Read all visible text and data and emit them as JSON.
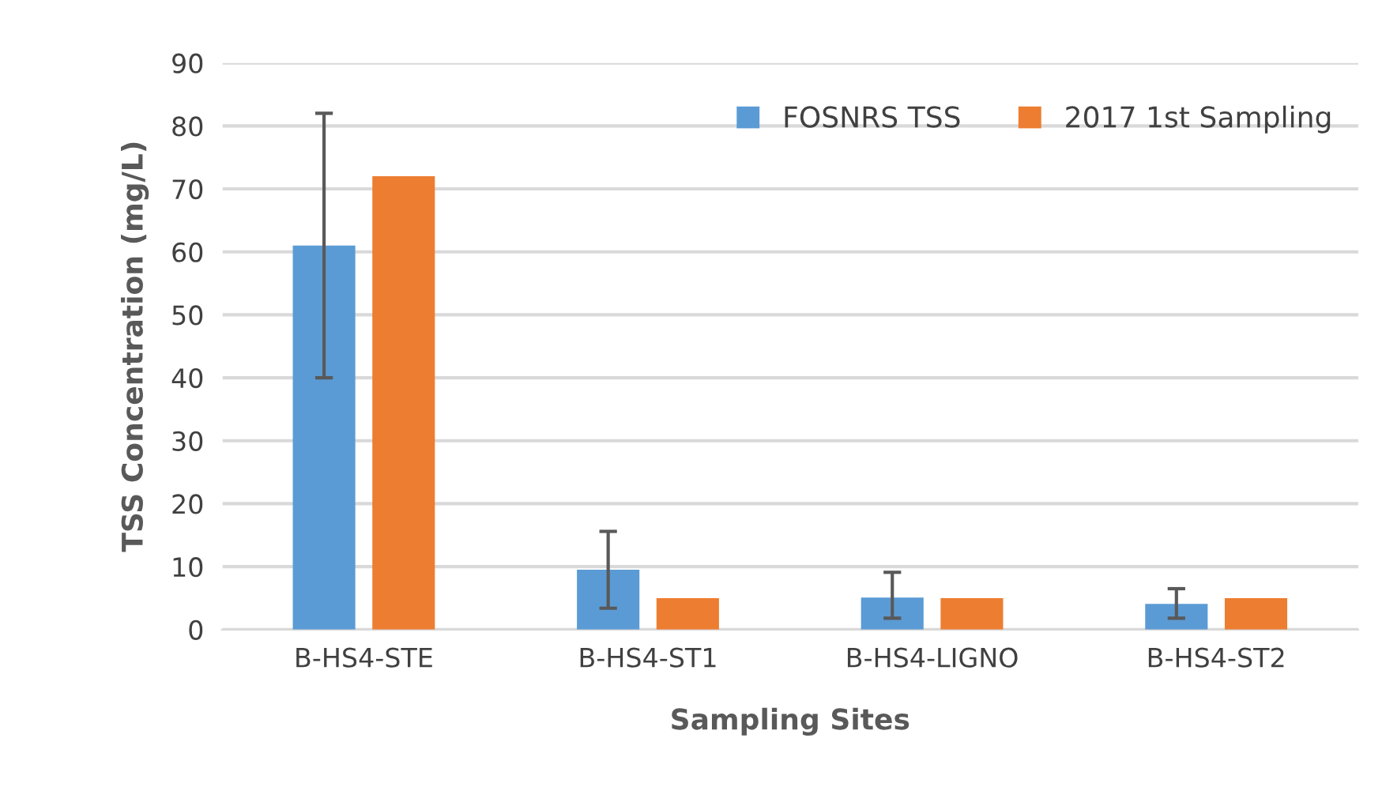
{
  "chart_data": {
    "type": "bar",
    "xlabel": "Sampling Sites",
    "ylabel": "TSS Concentration (mg/L)",
    "categories": [
      "B-HS4-STE",
      "B-HS4-ST1",
      "B-HS4-LIGNO",
      "B-HS4-ST2"
    ],
    "series": [
      {
        "name": "FOSNRS TSS",
        "color": "#5b9bd5",
        "values": [
          61,
          9.5,
          5.1,
          4.1
        ],
        "errors": [
          [
            40,
            82
          ],
          [
            3.4,
            15.6
          ],
          [
            1.8,
            9.1
          ],
          [
            1.8,
            6.5
          ]
        ]
      },
      {
        "name": "2017 1st Sampling",
        "color": "#ed7d31",
        "values": [
          72,
          5,
          5,
          5
        ]
      }
    ],
    "ylim": [
      0,
      90
    ],
    "yticks": [
      0,
      10,
      20,
      30,
      40,
      50,
      60,
      70,
      80,
      90
    ],
    "grid": "y",
    "legend": "top right"
  }
}
